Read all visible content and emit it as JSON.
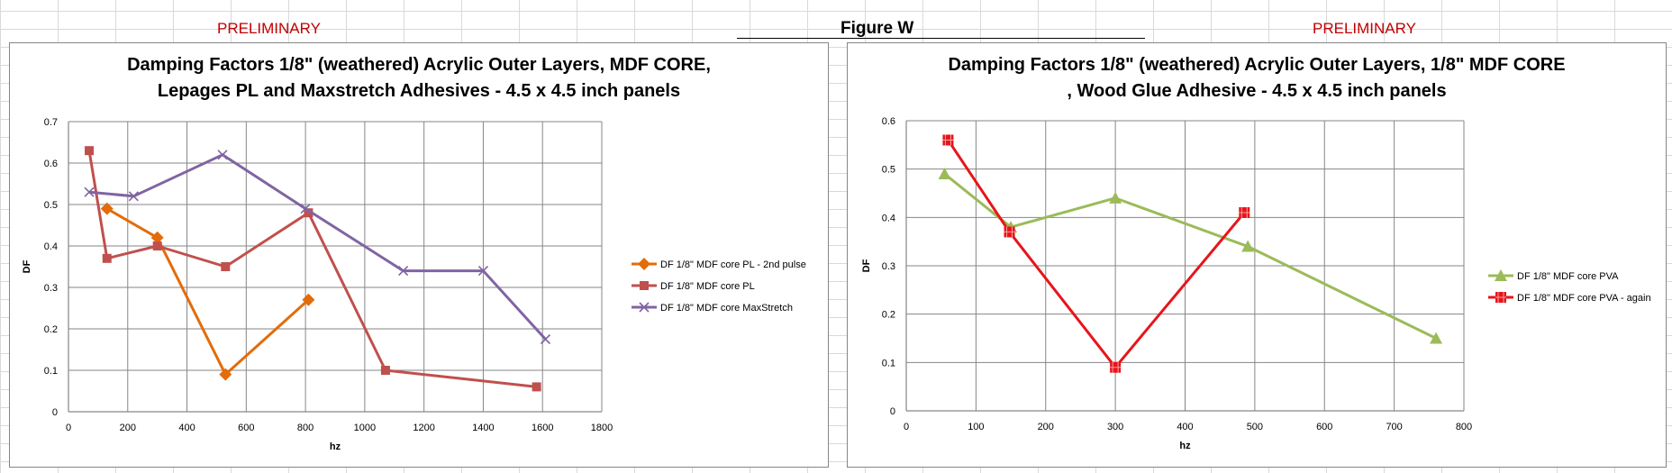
{
  "sheet": {
    "preliminary_left": "PRELIMINARY",
    "figure_label": "Figure W",
    "preliminary_right": "PRELIMINARY",
    "gridline_color": "#d9d9d9"
  },
  "chart_data": [
    {
      "type": "line",
      "title_lines": [
        "Damping Factors 1/8\" (weathered) Acrylic Outer Layers, MDF CORE,",
        "Lepages PL and Maxstretch Adhesives - 4.5 x 4.5 inch panels"
      ],
      "xlabel": "hz",
      "ylabel": "DF",
      "xlim": [
        0,
        1800
      ],
      "ylim": [
        0,
        0.7
      ],
      "xticks": [
        0,
        200,
        400,
        600,
        800,
        1000,
        1200,
        1400,
        1600,
        1800
      ],
      "yticks": [
        0,
        0.1,
        0.2,
        0.3,
        0.4,
        0.5,
        0.6,
        0.7
      ],
      "grid": true,
      "legend_position": "right",
      "series": [
        {
          "name": "DF 1/8\" MDF core PL - 2nd pulse",
          "color": "#e36c0a",
          "marker": "diamond",
          "x": [
            130,
            300,
            530,
            810
          ],
          "y": [
            0.49,
            0.42,
            0.09,
            0.27
          ]
        },
        {
          "name": "DF 1/8\" MDF core PL",
          "color": "#c0504d",
          "marker": "square",
          "x": [
            70,
            130,
            300,
            530,
            810,
            1070,
            1580
          ],
          "y": [
            0.63,
            0.37,
            0.4,
            0.35,
            0.48,
            0.1,
            0.06
          ]
        },
        {
          "name": "DF 1/8\" MDF core MaxStretch",
          "color": "#8064a2",
          "marker": "x",
          "x": [
            70,
            220,
            520,
            800,
            1130,
            1400,
            1610
          ],
          "y": [
            0.53,
            0.52,
            0.62,
            0.49,
            0.34,
            0.34,
            0.175
          ]
        }
      ]
    },
    {
      "type": "line",
      "title_lines": [
        "Damping Factors 1/8\" (weathered) Acrylic Outer Layers, 1/8\" MDF CORE",
        ", Wood Glue Adhesive - 4.5 x 4.5 inch panels"
      ],
      "xlabel": "hz",
      "ylabel": "DF",
      "xlim": [
        0,
        800
      ],
      "ylim": [
        0,
        0.6
      ],
      "xticks": [
        0,
        100,
        200,
        300,
        400,
        500,
        600,
        700,
        800
      ],
      "yticks": [
        0,
        0.1,
        0.2,
        0.3,
        0.4,
        0.5,
        0.6
      ],
      "grid": true,
      "legend_position": "right",
      "series": [
        {
          "name": "DF 1/8\" MDF core PVA",
          "color": "#9bbb59",
          "marker": "triangle",
          "x": [
            55,
            150,
            300,
            490,
            760
          ],
          "y": [
            0.49,
            0.38,
            0.44,
            0.34,
            0.15
          ]
        },
        {
          "name": "DF 1/8\" MDF core PVA - again",
          "color": "#e8141b",
          "marker": "square-cross",
          "x": [
            60,
            148,
            300,
            485
          ],
          "y": [
            0.56,
            0.37,
            0.09,
            0.41
          ]
        }
      ]
    }
  ]
}
